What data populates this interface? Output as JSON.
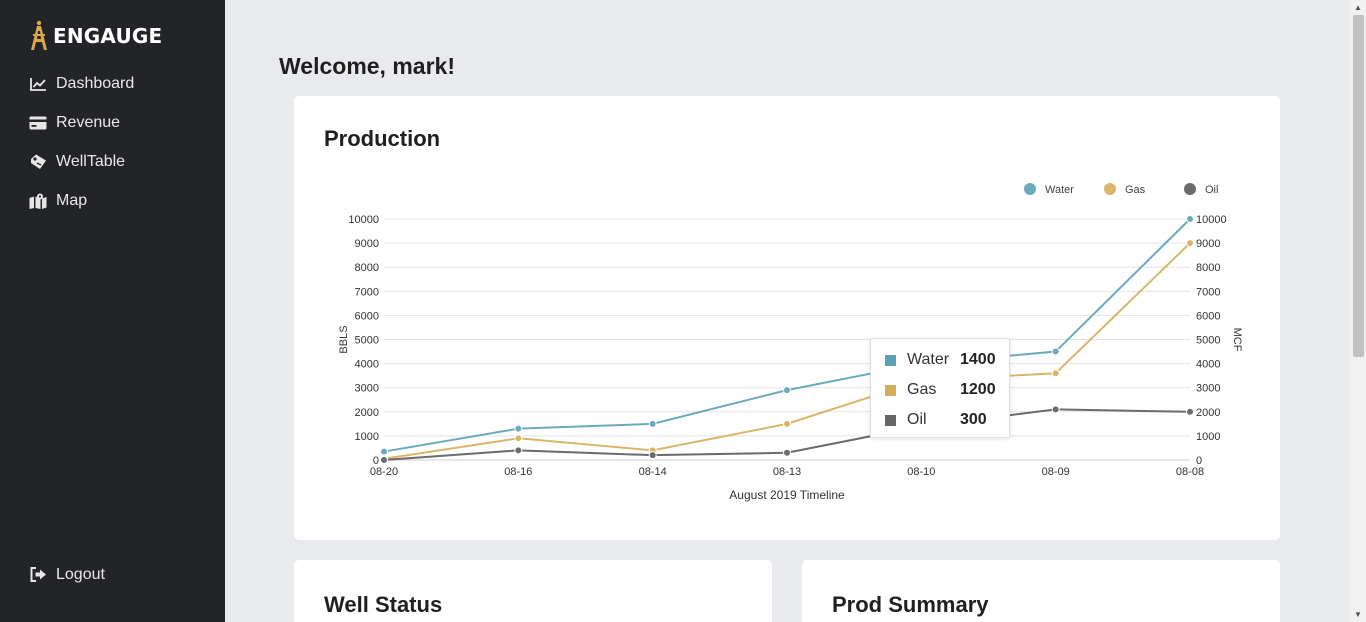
{
  "app": {
    "brand": "ENGAUGE"
  },
  "sidebar": {
    "items": [
      {
        "label": "Dashboard",
        "icon": "chart-line-icon"
      },
      {
        "label": "Revenue",
        "icon": "credit-card-icon"
      },
      {
        "label": "WellTable",
        "icon": "tag-icon"
      },
      {
        "label": "Map",
        "icon": "map-icon"
      }
    ],
    "logout": {
      "label": "Logout",
      "icon": "logout-icon"
    }
  },
  "main": {
    "welcome": "Welcome, mark!",
    "production_title": "Production",
    "well_status_title": "Well Status",
    "prod_summary_title": "Prod Summary"
  },
  "tooltip": {
    "rows": [
      {
        "name": "Water",
        "value": "1400"
      },
      {
        "name": "Gas",
        "value": "1200"
      },
      {
        "name": "Oil",
        "value": "300"
      }
    ]
  },
  "colors": {
    "water": "#6aaabb",
    "gas": "#d9b66a",
    "oil": "#6b6b6b",
    "sidebar": "#232427",
    "background": "#e9eaee",
    "water_swatch": "#5e9fb3",
    "gas_swatch": "#d4ad5a",
    "oil_swatch": "#666666"
  },
  "chart_data": {
    "type": "line",
    "categories": [
      "08-20",
      "08-16",
      "08-14",
      "08-13",
      "08-10",
      "08-09",
      "08-08"
    ],
    "series": [
      {
        "name": "Water",
        "values": [
          350,
          1300,
          1500,
          2900,
          4000,
          4500,
          10000
        ]
      },
      {
        "name": "Gas",
        "values": [
          50,
          900,
          400,
          1500,
          3300,
          3600,
          9000
        ]
      },
      {
        "name": "Oil",
        "values": [
          0,
          400,
          200,
          300,
          1400,
          2100,
          2000
        ]
      }
    ],
    "xlabel": "August 2019 Timeline",
    "ylabel": "BBLS",
    "y2label": "MCF",
    "ylim": [
      0,
      10000
    ],
    "yticks": [
      0,
      1000,
      2000,
      3000,
      4000,
      5000,
      6000,
      7000,
      8000,
      9000,
      10000
    ],
    "grid": true,
    "legend": "top-right"
  }
}
